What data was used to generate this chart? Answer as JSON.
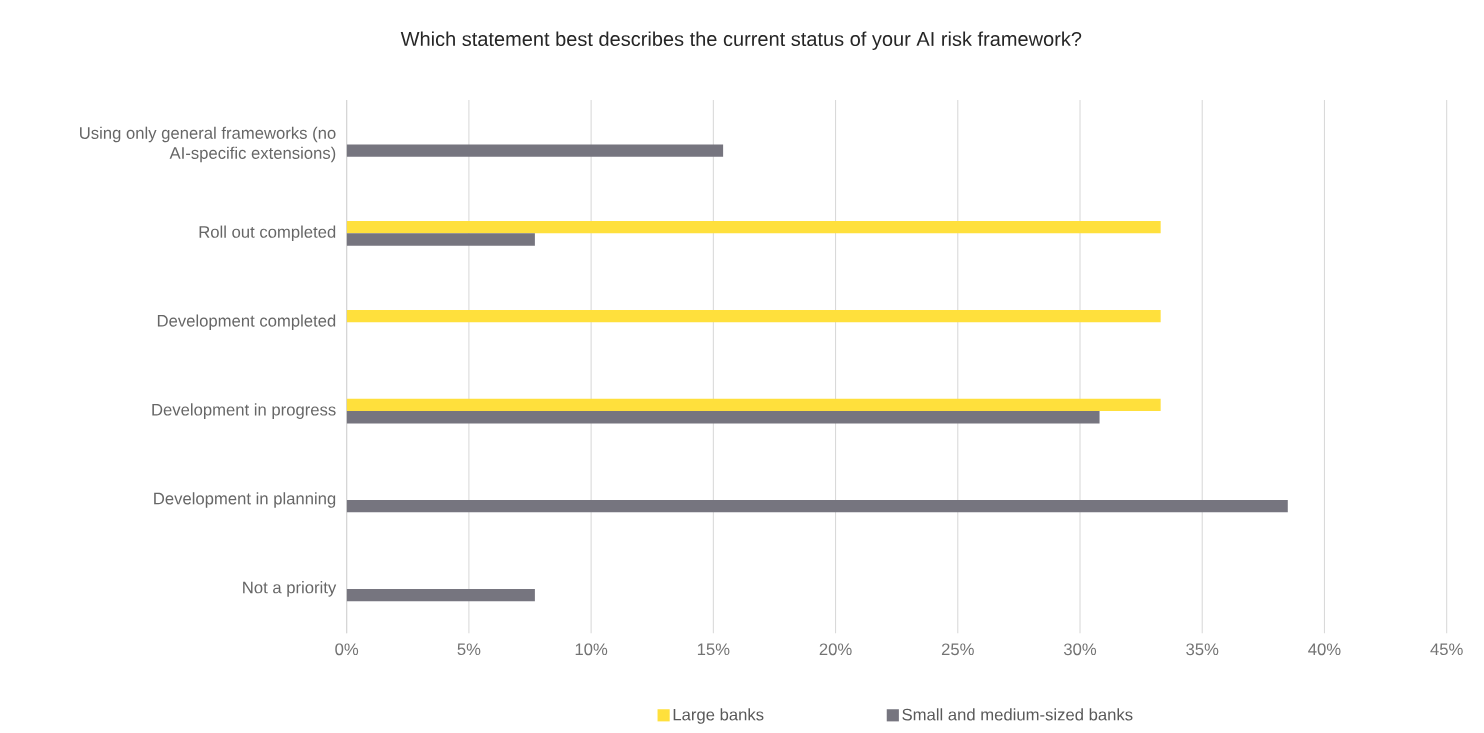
{
  "chart_data": {
    "type": "bar",
    "orientation": "horizontal",
    "title": "Which statement best describes the current status of your AI risk framework?",
    "categories": [
      "Using only general frameworks (no AI-specific extensions)",
      "Roll out completed",
      "Development completed",
      "Development in progress",
      "Development in planning",
      "Not a priority"
    ],
    "series": [
      {
        "name": "Large banks",
        "color": "#ffe03c",
        "values": [
          null,
          33.3,
          33.3,
          33.3,
          null,
          null
        ]
      },
      {
        "name": "Small and medium-sized banks",
        "color": "#76757f",
        "values": [
          15.4,
          7.7,
          null,
          30.8,
          38.5,
          7.7
        ]
      }
    ],
    "xlim": [
      0,
      45
    ],
    "xticks": [
      {
        "value": 0,
        "label": "0%"
      },
      {
        "value": 5,
        "label": "5%"
      },
      {
        "value": 10,
        "label": "10%"
      },
      {
        "value": 15,
        "label": "15%"
      },
      {
        "value": 20,
        "label": "20%"
      },
      {
        "value": 25,
        "label": "25%"
      },
      {
        "value": 30,
        "label": "30%"
      },
      {
        "value": 35,
        "label": "35%"
      },
      {
        "value": 40,
        "label": "40%"
      },
      {
        "value": 45,
        "label": "45%"
      }
    ],
    "grid": "x",
    "legend": "bottom"
  }
}
